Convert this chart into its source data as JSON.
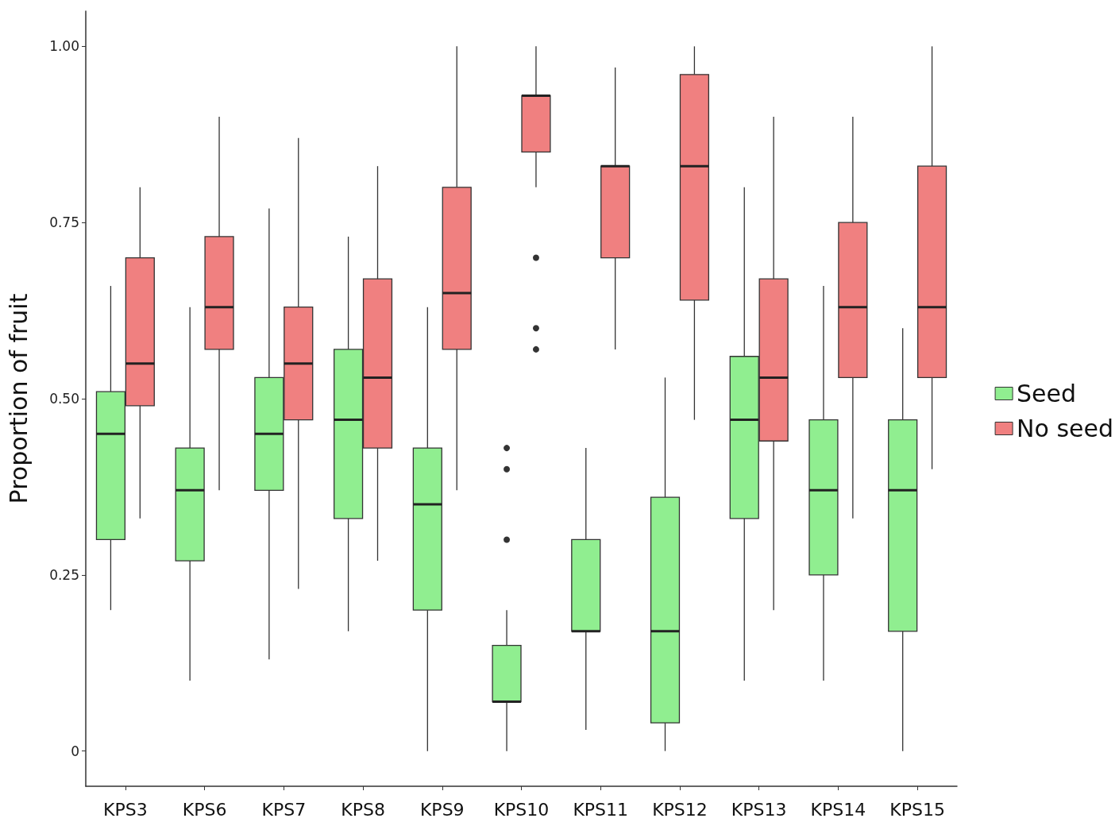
{
  "chart_data": {
    "type": "box",
    "ylabel": "Proportion of fruit",
    "categories": [
      "KPS3",
      "KPS6",
      "KPS7",
      "KPS8",
      "KPS9",
      "KPS10",
      "KPS11",
      "KPS12",
      "KPS13",
      "KPS14",
      "KPS15"
    ],
    "ylim": [
      -0.05,
      1.05
    ],
    "yticks": [
      {
        "value": 0,
        "label": "0"
      },
      {
        "value": 0.25,
        "label": "0.25"
      },
      {
        "value": 0.5,
        "label": "0.50"
      },
      {
        "value": 0.75,
        "label": "0.75"
      },
      {
        "value": 1,
        "label": "1.00"
      }
    ],
    "grid": false,
    "legend": "right",
    "series": [
      {
        "name": "Seed",
        "color": "#90ee90",
        "boxes": [
          {
            "low": 0.2,
            "q1": 0.3,
            "median": 0.45,
            "q3": 0.51,
            "high": 0.66
          },
          {
            "low": 0.1,
            "q1": 0.27,
            "median": 0.37,
            "q3": 0.43,
            "high": 0.63
          },
          {
            "low": 0.13,
            "q1": 0.37,
            "median": 0.45,
            "q3": 0.53,
            "high": 0.77
          },
          {
            "low": 0.17,
            "q1": 0.33,
            "median": 0.47,
            "q3": 0.57,
            "high": 0.73
          },
          {
            "low": 0,
            "q1": 0.2,
            "median": 0.35,
            "q3": 0.43,
            "high": 0.63
          },
          {
            "low": 0,
            "q1": 0.07,
            "median": 0.07,
            "q3": 0.15,
            "high": 0.2,
            "outliers": [
              0.43,
              0.4,
              0.3
            ]
          },
          {
            "low": 0.03,
            "q1": 0.17,
            "median": 0.17,
            "q3": 0.3,
            "high": 0.43
          },
          {
            "low": 0,
            "q1": 0.04,
            "median": 0.17,
            "q3": 0.36,
            "high": 0.53
          },
          {
            "low": 0.1,
            "q1": 0.33,
            "median": 0.47,
            "q3": 0.56,
            "high": 0.8
          },
          {
            "low": 0.1,
            "q1": 0.25,
            "median": 0.37,
            "q3": 0.47,
            "high": 0.66
          },
          {
            "low": 0,
            "q1": 0.17,
            "median": 0.37,
            "q3": 0.47,
            "high": 0.6
          }
        ]
      },
      {
        "name": "No seed",
        "color": "#f08080",
        "boxes": [
          {
            "low": 0.33,
            "q1": 0.49,
            "median": 0.55,
            "q3": 0.7,
            "high": 0.8
          },
          {
            "low": 0.37,
            "q1": 0.57,
            "median": 0.63,
            "q3": 0.73,
            "high": 0.9
          },
          {
            "low": 0.23,
            "q1": 0.47,
            "median": 0.55,
            "q3": 0.63,
            "high": 0.87
          },
          {
            "low": 0.27,
            "q1": 0.43,
            "median": 0.53,
            "q3": 0.67,
            "high": 0.83
          },
          {
            "low": 0.37,
            "q1": 0.57,
            "median": 0.65,
            "q3": 0.8,
            "high": 1
          },
          {
            "low": 0.8,
            "q1": 0.85,
            "median": 0.93,
            "q3": 0.93,
            "high": 1,
            "outliers": [
              0.7,
              0.6,
              0.57
            ]
          },
          {
            "low": 0.57,
            "q1": 0.7,
            "median": 0.83,
            "q3": 0.83,
            "high": 0.97
          },
          {
            "low": 0.47,
            "q1": 0.64,
            "median": 0.83,
            "q3": 0.96,
            "high": 1
          },
          {
            "low": 0.2,
            "q1": 0.44,
            "median": 0.53,
            "q3": 0.67,
            "high": 0.9
          },
          {
            "low": 0.33,
            "q1": 0.53,
            "median": 0.63,
            "q3": 0.75,
            "high": 0.9
          },
          {
            "low": 0.4,
            "q1": 0.53,
            "median": 0.63,
            "q3": 0.83,
            "high": 1
          }
        ]
      }
    ]
  }
}
